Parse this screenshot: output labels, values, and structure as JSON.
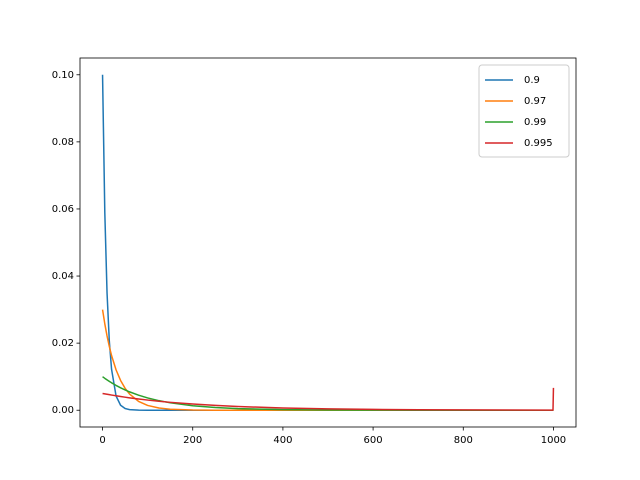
{
  "chart_data": {
    "type": "line",
    "x": [
      0,
      5,
      10,
      15,
      20,
      30,
      40,
      50,
      60,
      80,
      100,
      125,
      150,
      200,
      250,
      300,
      400,
      500,
      600,
      700,
      800,
      900,
      999,
      1000
    ],
    "series": [
      {
        "name": "0.9",
        "color": "#1f77b4",
        "values": [
          0.1,
          0.059,
          0.0349,
          0.0206,
          0.0122,
          0.00424,
          0.00148,
          0.000515,
          0.00018,
          2e-05,
          0,
          0,
          0,
          0,
          0,
          0,
          0,
          0,
          0,
          0,
          0,
          0,
          0,
          0
        ]
      },
      {
        "name": "0.97",
        "color": "#ff7f0e",
        "values": [
          0.03,
          0.02576,
          0.02212,
          0.019,
          0.01631,
          0.01203,
          0.00887,
          0.00654,
          0.00482,
          0.00262,
          0.00143,
          0.00067,
          0.00031,
          7e-05,
          1e-05,
          0,
          0,
          0,
          0,
          0,
          0,
          0,
          0,
          0
        ]
      },
      {
        "name": "0.99",
        "color": "#2ca02c",
        "values": [
          0.01,
          0.00951,
          0.00904,
          0.0086,
          0.00818,
          0.0074,
          0.00669,
          0.00605,
          0.00547,
          0.00448,
          0.00366,
          0.00285,
          0.00221,
          0.00134,
          0.00081,
          0.00049,
          0.00018,
          7e-05,
          2e-05,
          0,
          0,
          0,
          0,
          4e-05
        ]
      },
      {
        "name": "0.995",
        "color": "#d62728",
        "values": [
          0.005,
          0.00488,
          0.00476,
          0.00464,
          0.00452,
          0.0043,
          0.00409,
          0.00389,
          0.0037,
          0.00335,
          0.00303,
          0.00267,
          0.00236,
          0.00184,
          0.00143,
          0.00111,
          0.00067,
          0.00041,
          0.00025,
          0.00015,
          9e-05,
          6e-05,
          3e-05,
          0.00665
        ]
      }
    ],
    "xlim": [
      -50,
      1050
    ],
    "xticks": [
      0,
      200,
      400,
      600,
      800,
      1000
    ],
    "ylim": [
      -0.005,
      0.105
    ],
    "yticks": [
      {
        "value": 0,
        "label": "0.00"
      },
      {
        "value": 0.02,
        "label": "0.02"
      },
      {
        "value": 0.04,
        "label": "0.04"
      },
      {
        "value": 0.06,
        "label": "0.06"
      },
      {
        "value": 0.08,
        "label": "0.08"
      },
      {
        "value": 0.1,
        "label": "0.10"
      }
    ],
    "legend": "upper right"
  }
}
